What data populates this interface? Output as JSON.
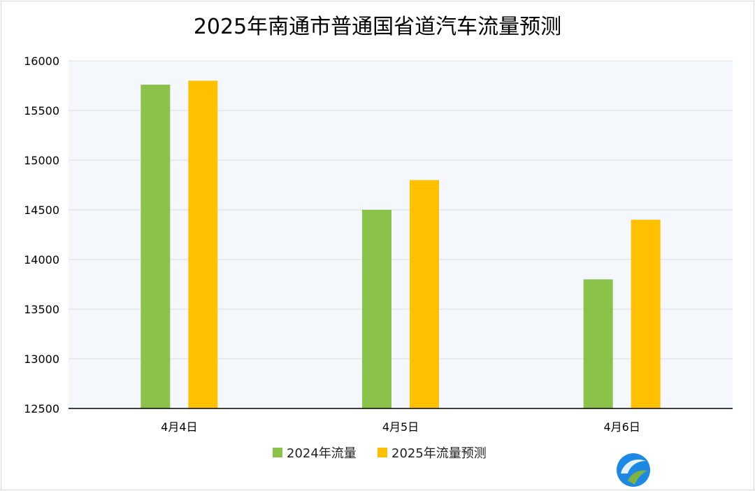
{
  "chart_data": {
    "type": "bar",
    "title": "2025年南通市普通国省道汽车流量预测",
    "categories": [
      "4月4日",
      "4月5日",
      "4月6日"
    ],
    "series": [
      {
        "name": "2024年流量",
        "color": "#8BC34A",
        "values": [
          15760,
          14500,
          13800
        ]
      },
      {
        "name": "2025年流量预测",
        "color": "#FFC000",
        "values": [
          15800,
          14800,
          14400
        ]
      }
    ],
    "ylim": [
      12500,
      16000
    ],
    "yticks": [
      "16000",
      "15500",
      "15000",
      "14500",
      "14000",
      "13500",
      "13000",
      "12500"
    ],
    "grid": true,
    "legend_position": "bottom"
  },
  "logo": {
    "name": "logo-icon"
  }
}
